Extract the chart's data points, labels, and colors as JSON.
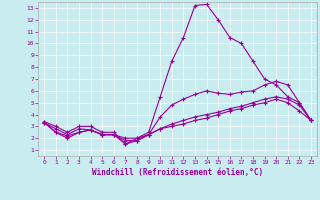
{
  "title": "",
  "xlabel": "Windchill (Refroidissement éolien,°C)",
  "background_color": "#c8ecf0",
  "line_color": "#990099",
  "xlim": [
    -0.5,
    23.5
  ],
  "ylim": [
    0.5,
    13.5
  ],
  "xticks": [
    0,
    1,
    2,
    3,
    4,
    5,
    6,
    7,
    8,
    9,
    10,
    11,
    12,
    13,
    14,
    15,
    16,
    17,
    18,
    19,
    20,
    21,
    22,
    23
  ],
  "yticks": [
    1,
    2,
    3,
    4,
    5,
    6,
    7,
    8,
    9,
    10,
    11,
    12,
    13
  ],
  "x": [
    0,
    1,
    2,
    3,
    4,
    5,
    6,
    7,
    8,
    9,
    10,
    11,
    12,
    13,
    14,
    15,
    16,
    17,
    18,
    19,
    20,
    21,
    22,
    23
  ],
  "line1_y": [
    3.4,
    3.0,
    2.5,
    3.0,
    3.0,
    2.5,
    2.5,
    1.5,
    2.0,
    2.5,
    5.5,
    8.5,
    10.5,
    13.2,
    13.3,
    12.0,
    10.5,
    10.0,
    8.5,
    7.0,
    6.5,
    5.5,
    5.0,
    3.5
  ],
  "line2_y": [
    3.3,
    2.8,
    2.3,
    2.8,
    2.7,
    2.3,
    2.3,
    1.8,
    1.8,
    2.3,
    3.8,
    4.8,
    5.3,
    5.7,
    6.0,
    5.8,
    5.7,
    5.9,
    6.0,
    6.5,
    6.8,
    6.5,
    5.0,
    3.5
  ],
  "line3_y": [
    3.3,
    2.5,
    2.0,
    2.5,
    2.7,
    2.3,
    2.3,
    2.0,
    2.0,
    2.3,
    2.8,
    3.2,
    3.5,
    3.8,
    4.0,
    4.2,
    4.5,
    4.7,
    5.0,
    5.3,
    5.5,
    5.3,
    4.8,
    3.5
  ],
  "line4_y": [
    3.4,
    2.5,
    2.2,
    2.5,
    2.7,
    2.3,
    2.3,
    1.5,
    1.8,
    2.3,
    2.8,
    3.0,
    3.2,
    3.5,
    3.7,
    4.0,
    4.3,
    4.5,
    4.8,
    5.0,
    5.3,
    5.0,
    4.3,
    3.5
  ]
}
